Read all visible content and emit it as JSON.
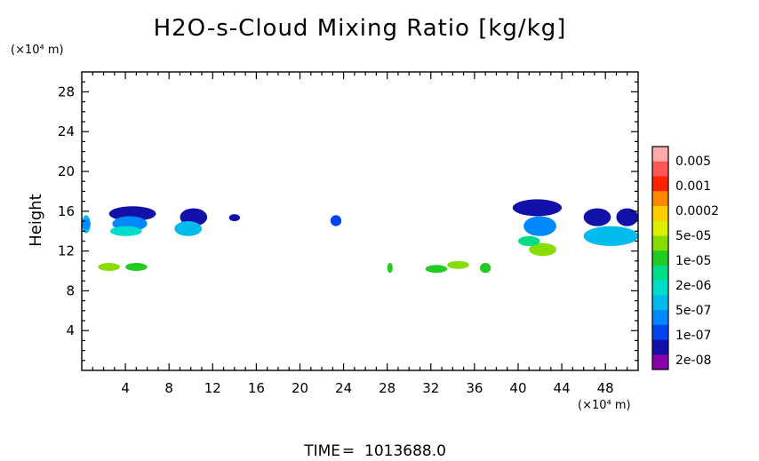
{
  "chart_data": {
    "type": "heatmap",
    "title": "H2O-s-Cloud Mixing Ratio [kg/kg]",
    "xlabel": "",
    "ylabel": "Height",
    "x_unit_label": "(×10⁴ m)",
    "y_unit_label": "(×10⁴ m)",
    "xlim": [
      0,
      51
    ],
    "ylim": [
      0,
      30
    ],
    "x_ticks": [
      "4",
      "8",
      "12",
      "16",
      "20",
      "24",
      "28",
      "32",
      "36",
      "40",
      "44",
      "48"
    ],
    "y_ticks": [
      "4",
      "8",
      "12",
      "16",
      "20",
      "24",
      "28"
    ],
    "time_label": "TIME",
    "time_value": "1013688.0",
    "colorbar": {
      "labels": [
        "0.005",
        "0.001",
        "0.0002",
        "5e-05",
        "1e-05",
        "2e-06",
        "5e-07",
        "1e-07",
        "2e-08"
      ],
      "colors": [
        "#ffaaaa",
        "#ff5555",
        "#ff2200",
        "#ff8800",
        "#ffcc00",
        "#ddee00",
        "#88dd00",
        "#22cc22",
        "#00dd88",
        "#00ddcc",
        "#00bbee",
        "#0088ff",
        "#0044ee",
        "#1111aa",
        "#8800aa"
      ]
    },
    "cloud_regions": [
      {
        "level": 10,
        "x": [
          0.0,
          0.8
        ],
        "y": [
          13.8,
          15.6
        ]
      },
      {
        "level": 11,
        "x": [
          0.0,
          0.8
        ],
        "y": [
          14.2,
          15.2
        ]
      },
      {
        "level": 13,
        "x": [
          2.5,
          6.8
        ],
        "y": [
          15.0,
          16.5
        ]
      },
      {
        "level": 11,
        "x": [
          2.8,
          6.0
        ],
        "y": [
          14.0,
          15.5
        ]
      },
      {
        "level": 9,
        "x": [
          2.6,
          5.5
        ],
        "y": [
          13.5,
          14.5
        ]
      },
      {
        "level": 13,
        "x": [
          9.0,
          11.5
        ],
        "y": [
          14.5,
          16.3
        ]
      },
      {
        "level": 10,
        "x": [
          8.5,
          11.0
        ],
        "y": [
          13.5,
          15.0
        ]
      },
      {
        "level": 13,
        "x": [
          13.5,
          14.5
        ],
        "y": [
          15.0,
          15.7
        ]
      },
      {
        "level": 12,
        "x": [
          22.8,
          23.8
        ],
        "y": [
          14.5,
          15.6
        ]
      },
      {
        "level": 13,
        "x": [
          39.5,
          44.0
        ],
        "y": [
          15.5,
          17.2
        ]
      },
      {
        "level": 11,
        "x": [
          40.5,
          43.5
        ],
        "y": [
          13.5,
          15.5
        ]
      },
      {
        "level": 6,
        "x": [
          41.0,
          43.5
        ],
        "y": [
          11.5,
          12.8
        ]
      },
      {
        "level": 8,
        "x": [
          40.0,
          42.0
        ],
        "y": [
          12.5,
          13.5
        ]
      },
      {
        "level": 13,
        "x": [
          46.0,
          48.5
        ],
        "y": [
          14.5,
          16.3
        ]
      },
      {
        "level": 10,
        "x": [
          46.0,
          51.0
        ],
        "y": [
          12.5,
          14.5
        ]
      },
      {
        "level": 13,
        "x": [
          49.0,
          51.0
        ],
        "y": [
          14.5,
          16.3
        ]
      },
      {
        "level": 6,
        "x": [
          1.5,
          3.5
        ],
        "y": [
          10.0,
          10.8
        ]
      },
      {
        "level": 7,
        "x": [
          4.0,
          6.0
        ],
        "y": [
          10.0,
          10.8
        ]
      },
      {
        "level": 7,
        "x": [
          31.5,
          33.5
        ],
        "y": [
          9.8,
          10.6
        ]
      },
      {
        "level": 6,
        "x": [
          33.5,
          35.5
        ],
        "y": [
          10.2,
          11.0
        ]
      },
      {
        "level": 7,
        "x": [
          36.5,
          37.5
        ],
        "y": [
          9.8,
          10.8
        ]
      },
      {
        "level": 7,
        "x": [
          28.0,
          28.5
        ],
        "y": [
          9.8,
          10.8
        ]
      }
    ]
  }
}
